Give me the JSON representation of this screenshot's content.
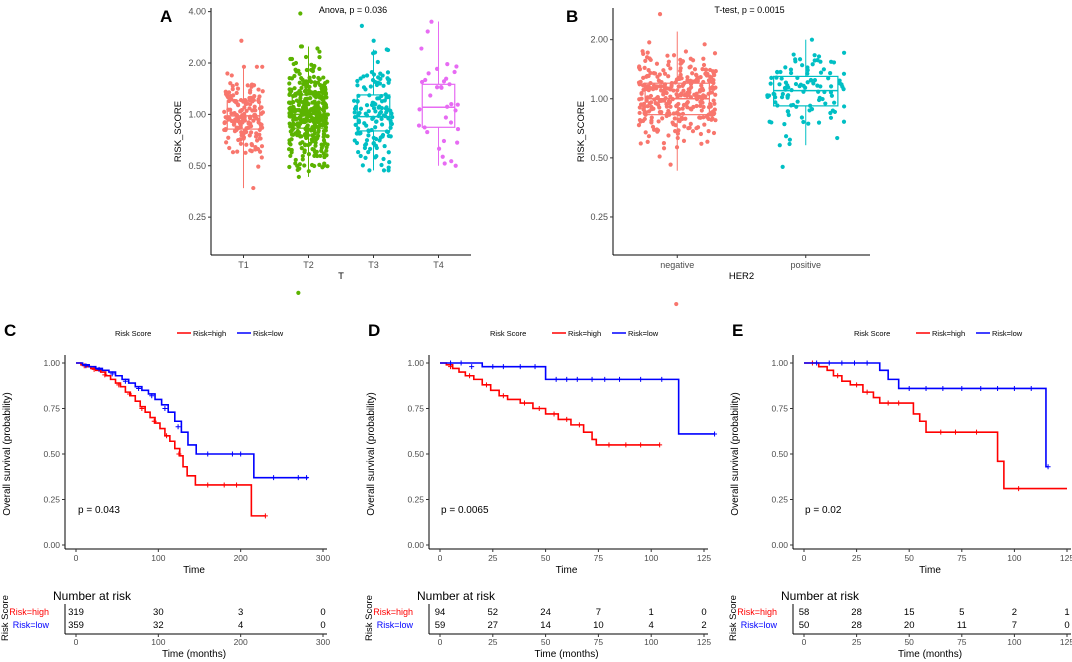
{
  "colors": {
    "t1": "#F8766D",
    "t2": "#5BB300",
    "t3": "#00BFC4",
    "t4": "#E76BF3",
    "negative": "#F8766D",
    "positive": "#00BFC4",
    "high": "#FF0000",
    "low": "#0000FF",
    "axis": "#000000",
    "tick_text": "#4D4D4D"
  },
  "chart_data": [
    {
      "panel": "A",
      "type": "boxplot-jitter",
      "annotation": "Anova, p = 0.036",
      "xlabel": "T",
      "ylabel": "RISK_SCORE",
      "y_scale": "log",
      "yticks": [
        0.25,
        0.5,
        1.0,
        2.0,
        4.0
      ],
      "ytick_labels": [
        "0.25",
        "0.50",
        "1.00",
        "2.00",
        "4.00"
      ],
      "ylim": [
        0.15,
        4.2
      ],
      "groups": [
        {
          "name": "T1",
          "color_key": "t1",
          "n": 170,
          "min": 0.37,
          "q1": 0.82,
          "median": 0.98,
          "q3": 1.2,
          "max": 1.9,
          "outliers": [
            2.7,
            0.37
          ]
        },
        {
          "name": "T2",
          "color_key": "t2",
          "n": 380,
          "min": 0.43,
          "q1": 0.83,
          "median": 1.0,
          "q3": 1.3,
          "max": 2.5,
          "outliers": [
            3.9,
            0.09
          ]
        },
        {
          "name": "T3",
          "color_key": "t3",
          "n": 140,
          "min": 0.47,
          "q1": 0.8,
          "median": 0.97,
          "q3": 1.3,
          "max": 2.4,
          "outliers": [
            3.3,
            2.7
          ]
        },
        {
          "name": "T4",
          "color_key": "t4",
          "n": 35,
          "min": 0.5,
          "q1": 0.84,
          "median": 1.1,
          "q3": 1.5,
          "max": 3.5,
          "outliers": []
        }
      ]
    },
    {
      "panel": "B",
      "type": "boxplot-jitter",
      "annotation": "T-test, p = 0.0015",
      "xlabel": "HER2",
      "ylabel": "RISK_SCORE",
      "y_scale": "log",
      "yticks": [
        0.25,
        0.5,
        1.0,
        2.0
      ],
      "ytick_labels": [
        "0.25",
        "0.50",
        "1.00",
        "2.00"
      ],
      "ylim": [
        0.16,
        2.9
      ],
      "groups": [
        {
          "name": "negative",
          "color_key": "negative",
          "n": 330,
          "min": 0.43,
          "q1": 0.83,
          "median": 1.0,
          "q3": 1.2,
          "max": 2.2,
          "outliers": [
            2.7,
            0.09
          ]
        },
        {
          "name": "positive",
          "color_key": "positive",
          "n": 110,
          "min": 0.58,
          "q1": 0.92,
          "median": 1.1,
          "q3": 1.3,
          "max": 2.0,
          "outliers": [
            0.45
          ]
        }
      ]
    },
    {
      "panel": "C",
      "type": "km",
      "legend_title": "Risk Score",
      "legend": [
        "Risk=high",
        "Risk=low"
      ],
      "ylabel": "Overall survival (probability)",
      "xlabel": "Time",
      "xlim": [
        0,
        300
      ],
      "xticks": [
        0,
        100,
        200,
        300
      ],
      "ylim": [
        0,
        1
      ],
      "yticks": [
        0,
        0.25,
        0.5,
        0.75,
        1.0
      ],
      "ytick_labels": [
        "0.00",
        "0.25",
        "0.50",
        "0.75",
        "1.00"
      ],
      "pvalue": "p = 0.043",
      "series": [
        {
          "name": "Risk=high",
          "color_key": "high",
          "steps": [
            [
              0,
              1.0
            ],
            [
              6,
              0.99
            ],
            [
              12,
              0.98
            ],
            [
              18,
              0.97
            ],
            [
              24,
              0.96
            ],
            [
              30,
              0.95
            ],
            [
              36,
              0.93
            ],
            [
              42,
              0.91
            ],
            [
              48,
              0.89
            ],
            [
              54,
              0.87
            ],
            [
              60,
              0.84
            ],
            [
              66,
              0.82
            ],
            [
              72,
              0.79
            ],
            [
              78,
              0.76
            ],
            [
              84,
              0.73
            ],
            [
              90,
              0.7
            ],
            [
              96,
              0.67
            ],
            [
              102,
              0.64
            ],
            [
              108,
              0.6
            ],
            [
              114,
              0.57
            ],
            [
              120,
              0.53
            ],
            [
              126,
              0.49
            ],
            [
              130,
              0.43
            ],
            [
              135,
              0.38
            ],
            [
              145,
              0.33
            ],
            [
              205,
              0.33
            ],
            [
              213,
              0.16
            ],
            [
              230,
              0.16
            ]
          ],
          "censor": [
            [
              10,
              0.985
            ],
            [
              22,
              0.965
            ],
            [
              35,
              0.935
            ],
            [
              52,
              0.88
            ],
            [
              65,
              0.83
            ],
            [
              80,
              0.75
            ],
            [
              95,
              0.68
            ],
            [
              110,
              0.6
            ],
            [
              125,
              0.5
            ],
            [
              160,
              0.33
            ],
            [
              180,
              0.33
            ],
            [
              195,
              0.33
            ],
            [
              230,
              0.16
            ]
          ]
        },
        {
          "name": "Risk=low",
          "color_key": "low",
          "steps": [
            [
              0,
              1.0
            ],
            [
              8,
              0.99
            ],
            [
              16,
              0.98
            ],
            [
              24,
              0.97
            ],
            [
              32,
              0.96
            ],
            [
              40,
              0.95
            ],
            [
              48,
              0.93
            ],
            [
              56,
              0.91
            ],
            [
              64,
              0.89
            ],
            [
              72,
              0.87
            ],
            [
              80,
              0.85
            ],
            [
              88,
              0.83
            ],
            [
              96,
              0.8
            ],
            [
              104,
              0.77
            ],
            [
              112,
              0.73
            ],
            [
              120,
              0.68
            ],
            [
              128,
              0.62
            ],
            [
              136,
              0.55
            ],
            [
              146,
              0.5
            ],
            [
              214,
              0.5
            ],
            [
              216,
              0.37
            ],
            [
              282,
              0.37
            ]
          ],
          "censor": [
            [
              12,
              0.985
            ],
            [
              28,
              0.965
            ],
            [
              44,
              0.94
            ],
            [
              60,
              0.9
            ],
            [
              76,
              0.86
            ],
            [
              92,
              0.82
            ],
            [
              108,
              0.75
            ],
            [
              124,
              0.65
            ],
            [
              160,
              0.5
            ],
            [
              190,
              0.5
            ],
            [
              200,
              0.5
            ],
            [
              240,
              0.37
            ],
            [
              270,
              0.37
            ],
            [
              280,
              0.37
            ]
          ]
        }
      ],
      "risk_table": {
        "title": "Number at risk",
        "side_label": "Risk Score",
        "xlabel": "Time (months)",
        "times": [
          0,
          100,
          200,
          300
        ],
        "rows": [
          {
            "label": "Risk=high",
            "color_key": "high",
            "values": [
              "319",
              "30",
              "3",
              "0"
            ]
          },
          {
            "label": "Risk=low",
            "color_key": "low",
            "values": [
              "359",
              "32",
              "4",
              "0"
            ]
          }
        ]
      }
    },
    {
      "panel": "D",
      "type": "km",
      "legend_title": "Risk Score",
      "legend": [
        "Risk=high",
        "Risk=low"
      ],
      "ylabel": "Overall survival (probability)",
      "xlabel": "Time",
      "xlim": [
        0,
        125
      ],
      "xticks": [
        0,
        25,
        50,
        75,
        100,
        125
      ],
      "ylim": [
        0,
        1
      ],
      "yticks": [
        0,
        0.25,
        0.5,
        0.75,
        1.0
      ],
      "ytick_labels": [
        "0.00",
        "0.25",
        "0.50",
        "0.75",
        "1.00"
      ],
      "pvalue": "p = 0.0065",
      "series": [
        {
          "name": "Risk=high",
          "color_key": "high",
          "steps": [
            [
              0,
              1.0
            ],
            [
              3,
              0.99
            ],
            [
              6,
              0.97
            ],
            [
              9,
              0.95
            ],
            [
              12,
              0.93
            ],
            [
              16,
              0.91
            ],
            [
              20,
              0.88
            ],
            [
              24,
              0.85
            ],
            [
              28,
              0.82
            ],
            [
              32,
              0.8
            ],
            [
              38,
              0.78
            ],
            [
              44,
              0.75
            ],
            [
              50,
              0.72
            ],
            [
              56,
              0.69
            ],
            [
              62,
              0.66
            ],
            [
              68,
              0.62
            ],
            [
              72,
              0.58
            ],
            [
              74,
              0.55
            ],
            [
              104,
              0.55
            ]
          ],
          "censor": [
            [
              5,
              0.98
            ],
            [
              14,
              0.93
            ],
            [
              22,
              0.88
            ],
            [
              30,
              0.82
            ],
            [
              40,
              0.78
            ],
            [
              47,
              0.75
            ],
            [
              54,
              0.72
            ],
            [
              60,
              0.69
            ],
            [
              66,
              0.66
            ],
            [
              80,
              0.55
            ],
            [
              88,
              0.55
            ],
            [
              95,
              0.55
            ],
            [
              104,
              0.55
            ]
          ]
        },
        {
          "name": "Risk=low",
          "color_key": "low",
          "steps": [
            [
              0,
              1.0
            ],
            [
              20,
              0.98
            ],
            [
              48,
              0.98
            ],
            [
              50,
              0.91
            ],
            [
              112,
              0.91
            ],
            [
              113,
              0.61
            ],
            [
              130,
              0.61
            ]
          ],
          "censor": [
            [
              5,
              1.0
            ],
            [
              10,
              1.0
            ],
            [
              15,
              0.98
            ],
            [
              25,
              0.98
            ],
            [
              30,
              0.98
            ],
            [
              38,
              0.98
            ],
            [
              45,
              0.98
            ],
            [
              55,
              0.91
            ],
            [
              60,
              0.91
            ],
            [
              65,
              0.91
            ],
            [
              72,
              0.91
            ],
            [
              78,
              0.91
            ],
            [
              85,
              0.91
            ],
            [
              95,
              0.91
            ],
            [
              105,
              0.91
            ],
            [
              130,
              0.61
            ]
          ]
        }
      ],
      "risk_table": {
        "title": "Number at risk",
        "side_label": "Risk Score",
        "xlabel": "Time (months)",
        "times": [
          0,
          25,
          50,
          75,
          100,
          125
        ],
        "rows": [
          {
            "label": "Risk=high",
            "color_key": "high",
            "values": [
              "94",
              "52",
              "24",
              "7",
              "1",
              "0"
            ]
          },
          {
            "label": "Risk=low",
            "color_key": "low",
            "values": [
              "59",
              "27",
              "14",
              "10",
              "4",
              "2"
            ]
          }
        ]
      }
    },
    {
      "panel": "E",
      "type": "km",
      "legend_title": "Risk Score",
      "legend": [
        "Risk=high",
        "Risk=low"
      ],
      "ylabel": "Overall survival (probability)",
      "xlabel": "Time",
      "xlim": [
        0,
        125
      ],
      "xticks": [
        0,
        25,
        50,
        75,
        100,
        125
      ],
      "ylim": [
        0,
        1
      ],
      "yticks": [
        0,
        0.25,
        0.5,
        0.75,
        1.0
      ],
      "ytick_labels": [
        "0.00",
        "0.25",
        "0.50",
        "0.75",
        "1.00"
      ],
      "pvalue": "p = 0.02",
      "series": [
        {
          "name": "Risk=high",
          "color_key": "high",
          "steps": [
            [
              0,
              1.0
            ],
            [
              7,
              0.98
            ],
            [
              11,
              0.96
            ],
            [
              14,
              0.93
            ],
            [
              18,
              0.9
            ],
            [
              22,
              0.88
            ],
            [
              28,
              0.84
            ],
            [
              33,
              0.81
            ],
            [
              36,
              0.78
            ],
            [
              50,
              0.78
            ],
            [
              52,
              0.72
            ],
            [
              55,
              0.68
            ],
            [
              58,
              0.62
            ],
            [
              88,
              0.62
            ],
            [
              92,
              0.46
            ],
            [
              95,
              0.31
            ],
            [
              125,
              0.31
            ]
          ],
          "censor": [
            [
              4,
              1.0
            ],
            [
              16,
              0.93
            ],
            [
              25,
              0.88
            ],
            [
              30,
              0.84
            ],
            [
              40,
              0.78
            ],
            [
              45,
              0.78
            ],
            [
              65,
              0.62
            ],
            [
              72,
              0.62
            ],
            [
              82,
              0.62
            ],
            [
              102,
              0.31
            ]
          ]
        },
        {
          "name": "Risk=low",
          "color_key": "low",
          "steps": [
            [
              0,
              1.0
            ],
            [
              33,
              1.0
            ],
            [
              36,
              0.96
            ],
            [
              40,
              0.91
            ],
            [
              45,
              0.86
            ],
            [
              113,
              0.86
            ],
            [
              115,
              0.43
            ],
            [
              116,
              0.43
            ]
          ],
          "censor": [
            [
              6,
              1.0
            ],
            [
              12,
              1.0
            ],
            [
              18,
              1.0
            ],
            [
              24,
              1.0
            ],
            [
              30,
              1.0
            ],
            [
              50,
              0.86
            ],
            [
              58,
              0.86
            ],
            [
              66,
              0.86
            ],
            [
              75,
              0.86
            ],
            [
              84,
              0.86
            ],
            [
              92,
              0.86
            ],
            [
              100,
              0.86
            ],
            [
              108,
              0.86
            ],
            [
              116,
              0.43
            ]
          ]
        }
      ],
      "risk_table": {
        "title": "Number at risk",
        "side_label": "Risk Score",
        "xlabel": "Time (months)",
        "times": [
          0,
          25,
          50,
          75,
          100,
          125
        ],
        "rows": [
          {
            "label": "Risk=high",
            "color_key": "high",
            "values": [
              "58",
              "28",
              "15",
              "5",
              "2",
              "1"
            ]
          },
          {
            "label": "Risk=low",
            "color_key": "low",
            "values": [
              "50",
              "28",
              "20",
              "11",
              "7",
              "0"
            ]
          }
        ]
      }
    }
  ]
}
